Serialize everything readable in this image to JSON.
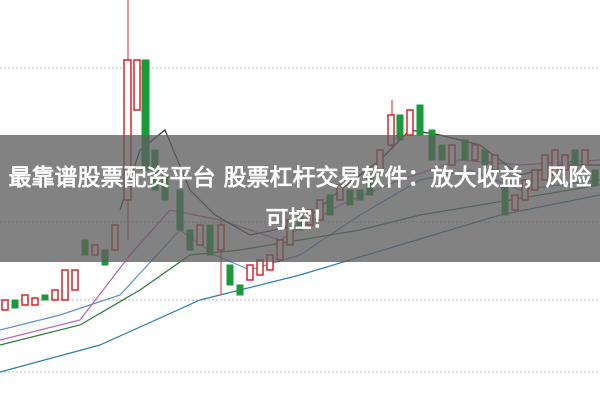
{
  "banner": {
    "text": "最靠谱股票配资平台 股票杠杆交易软件：放大收益，风险可控！"
  }
}
